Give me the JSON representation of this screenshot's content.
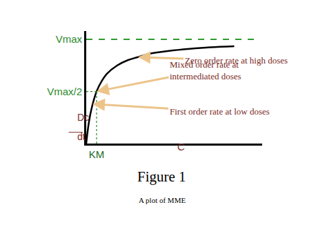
{
  "chart_data": {
    "type": "line",
    "title": "Figure 1",
    "subtitle": "A plot of MME",
    "xlabel": "C",
    "ylabel": {
      "numerator": "Dc",
      "denominator": "dt"
    },
    "x": [
      0,
      0.25,
      0.5,
      1,
      1.5,
      2,
      3,
      4,
      5,
      6,
      8,
      10,
      12,
      14.3
    ],
    "series": [
      {
        "color": "#000000",
        "line_style": "solid",
        "values": [
          0,
          0.2,
          0.33,
          0.5,
          0.6,
          0.67,
          0.75,
          0.8,
          0.83,
          0.86,
          0.89,
          0.91,
          0.925,
          0.935
        ]
      },
      {
        "color": "#2e9a2e",
        "line_style": "dash",
        "x": [
          0,
          16.7
        ],
        "values": [
          1,
          1
        ]
      }
    ],
    "xlim": [
      0,
      17
    ],
    "ylim": [
      0,
      1.08
    ],
    "xticks": [
      {
        "value": 1,
        "label": "KM"
      }
    ],
    "yticks": [
      {
        "value": 0.5,
        "label": "Vmax/2"
      },
      {
        "value": 1,
        "label": "Vmax"
      }
    ],
    "grid": false,
    "annotations": [
      {
        "text": "Zero order rate at high doses",
        "x": 5,
        "y": 0.83
      },
      {
        "text": "Mixed order rate at\nintermediated doses",
        "x": 1,
        "y": 0.5
      },
      {
        "text": "First order rate at low doses",
        "x": 0.6,
        "y": 0.38
      }
    ]
  }
}
